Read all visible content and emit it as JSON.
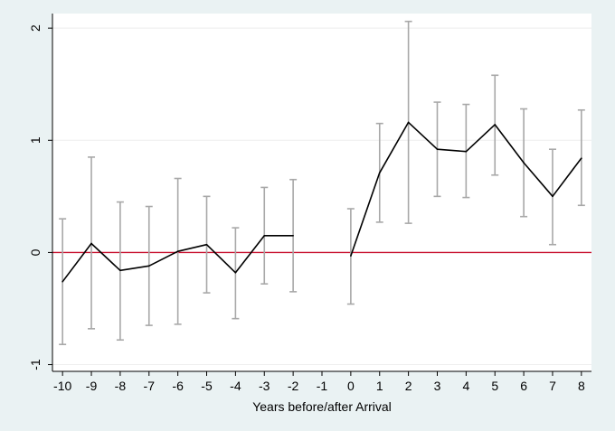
{
  "chart_data": {
    "type": "line",
    "title": "",
    "xlabel": "Years before/after Arrival",
    "ylabel": "",
    "x_ticks": [
      -10,
      -9,
      -8,
      -7,
      -6,
      -5,
      -4,
      -3,
      -2,
      -1,
      0,
      1,
      2,
      3,
      4,
      5,
      6,
      7,
      8
    ],
    "y_ticks": [
      -1,
      0,
      1,
      2
    ],
    "xlim": [
      -10.35,
      8.35
    ],
    "ylim": [
      -1.06,
      2.13
    ],
    "grid": "horizontal",
    "reference_line": {
      "y": 0,
      "color": "#c8102e"
    },
    "series": [
      {
        "color": "#000000",
        "error_bar_color": "#a8a8a8",
        "points": [
          {
            "x": -10,
            "y": -0.26,
            "lo": -0.82,
            "hi": 0.3
          },
          {
            "x": -9,
            "y": 0.08,
            "lo": -0.68,
            "hi": 0.85
          },
          {
            "x": -8,
            "y": -0.16,
            "lo": -0.78,
            "hi": 0.45
          },
          {
            "x": -7,
            "y": -0.12,
            "lo": -0.65,
            "hi": 0.41
          },
          {
            "x": -6,
            "y": 0.01,
            "lo": -0.64,
            "hi": 0.66
          },
          {
            "x": -5,
            "y": 0.07,
            "lo": -0.36,
            "hi": 0.5
          },
          {
            "x": -4,
            "y": -0.18,
            "lo": -0.59,
            "hi": 0.22
          },
          {
            "x": -3,
            "y": 0.15,
            "lo": -0.28,
            "hi": 0.58
          },
          {
            "x": -2,
            "y": 0.15,
            "lo": -0.35,
            "hi": 0.65
          },
          {
            "x": 0,
            "y": -0.03,
            "lo": -0.46,
            "hi": 0.39
          },
          {
            "x": 1,
            "y": 0.71,
            "lo": 0.27,
            "hi": 1.15
          },
          {
            "x": 2,
            "y": 1.16,
            "lo": 0.26,
            "hi": 2.06
          },
          {
            "x": 3,
            "y": 0.92,
            "lo": 0.5,
            "hi": 1.34
          },
          {
            "x": 4,
            "y": 0.9,
            "lo": 0.49,
            "hi": 1.32
          },
          {
            "x": 5,
            "y": 1.14,
            "lo": 0.69,
            "hi": 1.58
          },
          {
            "x": 6,
            "y": 0.8,
            "lo": 0.32,
            "hi": 1.28
          },
          {
            "x": 7,
            "y": 0.5,
            "lo": 0.07,
            "hi": 0.92
          },
          {
            "x": 8,
            "y": 0.84,
            "lo": 0.42,
            "hi": 1.27
          }
        ]
      }
    ]
  }
}
